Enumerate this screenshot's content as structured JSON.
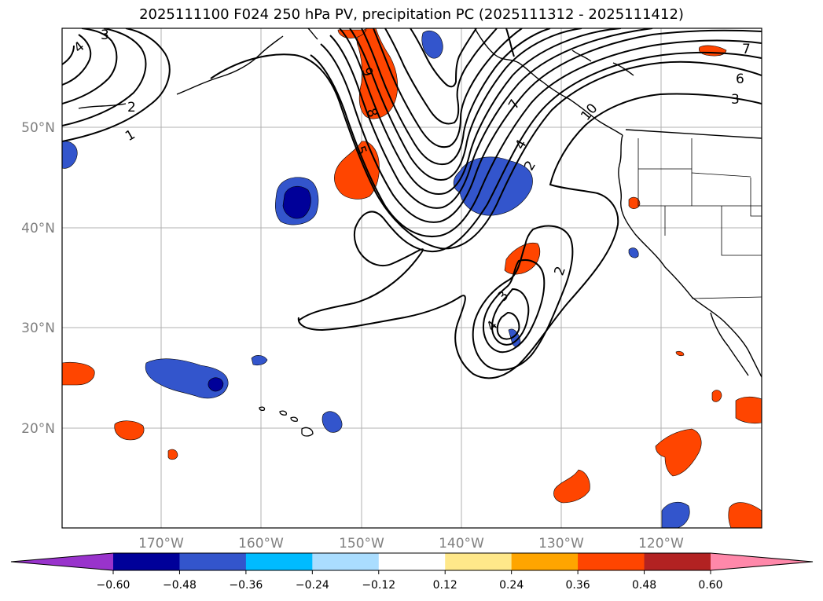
{
  "title": "2025111100 F024 250 hPa PV, precipitation PC (2025111312 - 2025111412)",
  "axes": {
    "lon_ticks": [
      "170°W",
      "160°W",
      "150°W",
      "140°W",
      "130°W",
      "120°W"
    ],
    "lat_ticks": [
      "50°N",
      "40°N",
      "30°N",
      "20°N"
    ]
  },
  "colorbar": {
    "colors": [
      "#9933cc",
      "#000099",
      "#3355cc",
      "#00bbff",
      "#aaddff",
      "#ffffff",
      "#ffe88a",
      "#ffa500",
      "#ff4500",
      "#b22222",
      "#ff88aa"
    ],
    "labels": [
      "−0.60",
      "−0.48",
      "−0.36",
      "−0.24",
      "−0.12",
      "0.12",
      "0.24",
      "0.36",
      "0.48",
      "0.60"
    ]
  },
  "contour_labels": [
    "3",
    "4",
    "2",
    "1",
    "9",
    "8",
    "5",
    "7",
    "4",
    "2",
    "10",
    "6",
    "3",
    "7",
    "3",
    "4",
    "2"
  ]
}
